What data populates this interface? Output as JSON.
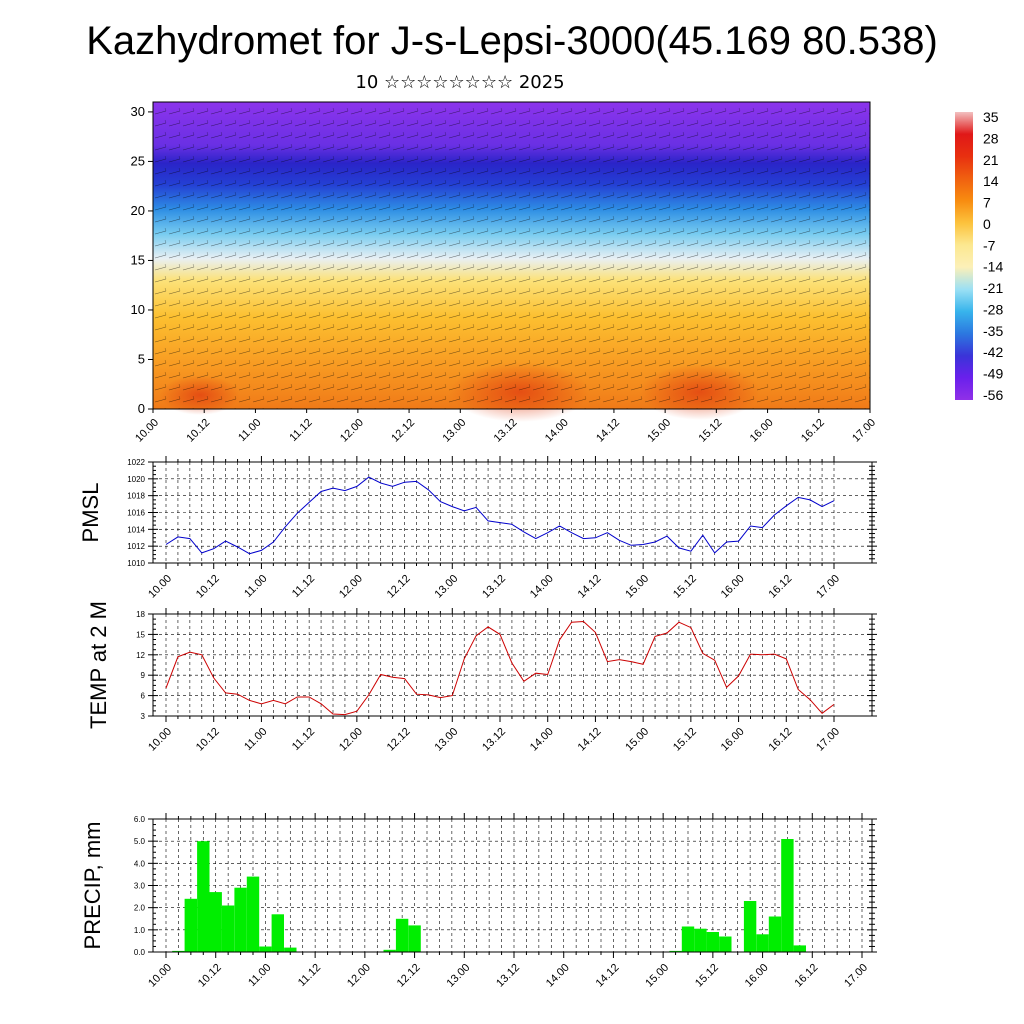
{
  "header": {
    "title": "Kazhydromet for J-s-Lepsi-3000(45.169 80.538)",
    "subtitle": "10 ☆☆☆☆☆☆☆☆ 2025"
  },
  "chart_data": [
    {
      "id": "cross_section",
      "type": "heatmap",
      "title": "",
      "xlabel": "",
      "ylabel": "",
      "x_ticks": [
        "10.00",
        "10.12",
        "11.00",
        "11.12",
        "12.00",
        "12.12",
        "13.00",
        "13.12",
        "14.00",
        "14.12",
        "15.00",
        "15.12",
        "16.00",
        "16.12",
        "17.00"
      ],
      "y_ticks": [
        0,
        5,
        10,
        15,
        20,
        25,
        30
      ],
      "ylim": [
        0,
        31
      ],
      "colorbar_labels": [
        "35",
        "28",
        "21",
        "14",
        "7",
        "0",
        "-7",
        "-14",
        "-21",
        "-28",
        "-35",
        "-42",
        "-49",
        "-56"
      ],
      "colorbar_colors": [
        "#f2c0c0",
        "#e01818",
        "#e83010",
        "#f06010",
        "#f88c10",
        "#fcc23c",
        "#fce890",
        "#fcf0b8",
        "#9ce0f4",
        "#38b4ec",
        "#2c78e0",
        "#3a34d8",
        "#6a20ec",
        "#9030e8"
      ],
      "notes": "Temperature (°C) vs height level with wind barbs overlay"
    },
    {
      "id": "pmsl",
      "type": "line",
      "ylabel": "PMSL",
      "ylim": [
        1010,
        1022
      ],
      "y_ticks": [
        1010,
        1012,
        1014,
        1016,
        1018,
        1020,
        1022
      ],
      "x_ticks": [
        "10.00",
        "10.12",
        "11.00",
        "11.12",
        "12.00",
        "12.12",
        "13.00",
        "13.12",
        "14.00",
        "14.12",
        "15.00",
        "15.12",
        "16.00",
        "16.12",
        "17.00"
      ],
      "color": "#0000cc",
      "values": [
        1012.2,
        1013.1,
        1012.9,
        1011.2,
        1011.7,
        1012.6,
        1011.9,
        1011.1,
        1011.5,
        1012.5,
        1014.3,
        1015.9,
        1017.2,
        1018.5,
        1018.9,
        1018.6,
        1019.1,
        1020.2,
        1019.5,
        1019.1,
        1019.6,
        1019.7,
        1018.7,
        1017.3,
        1016.7,
        1016.2,
        1016.6,
        1015.0,
        1014.8,
        1014.6,
        1013.7,
        1012.9,
        1013.6,
        1014.4,
        1013.6,
        1012.9,
        1013.0,
        1013.6,
        1012.7,
        1012.1,
        1012.2,
        1012.5,
        1013.2,
        1011.8,
        1011.4,
        1013.3,
        1011.2,
        1012.5,
        1012.6,
        1014.4,
        1014.2,
        1015.7,
        1016.8,
        1017.8,
        1017.5,
        1016.7,
        1017.4
      ]
    },
    {
      "id": "temp2m",
      "type": "line",
      "ylabel": "TEMP at 2 M",
      "ylim": [
        3,
        18
      ],
      "y_ticks": [
        3,
        6,
        9,
        12,
        15,
        18
      ],
      "x_ticks": [
        "10.00",
        "10.12",
        "11.00",
        "11.12",
        "12.00",
        "12.12",
        "13.00",
        "13.12",
        "14.00",
        "14.12",
        "15.00",
        "15.12",
        "16.00",
        "16.12",
        "17.00"
      ],
      "color": "#cc0000",
      "values": [
        7.1,
        11.7,
        12.4,
        12.0,
        8.6,
        6.4,
        6.2,
        5.3,
        4.8,
        5.3,
        4.8,
        5.8,
        5.8,
        4.8,
        3.3,
        3.2,
        3.7,
        6.1,
        9.1,
        8.7,
        8.5,
        6.2,
        6.1,
        5.7,
        6.0,
        11.4,
        14.8,
        16.1,
        15.0,
        10.8,
        8.1,
        9.3,
        9.1,
        14.2,
        16.8,
        16.9,
        15.3,
        11.0,
        11.3,
        11.0,
        10.6,
        14.7,
        15.2,
        16.8,
        16.0,
        12.2,
        11.2,
        7.2,
        8.9,
        12.1,
        12.0,
        12.1,
        11.4,
        6.9,
        5.4,
        3.4,
        4.7
      ]
    },
    {
      "id": "precip",
      "type": "bar",
      "ylabel": "PRECIP, mm",
      "ylim": [
        0,
        6
      ],
      "y_ticks": [
        "0.0",
        "1.0",
        "2.0",
        "3.0",
        "4.0",
        "5.0",
        "6.0"
      ],
      "x_ticks": [
        "10.00",
        "10.12",
        "11.00",
        "11.12",
        "12.00",
        "12.12",
        "13.00",
        "13.12",
        "14.00",
        "14.12",
        "15.00",
        "15.12",
        "16.00",
        "16.12",
        "17.00"
      ],
      "color": "#00ee00",
      "values": [
        0,
        0.05,
        2.4,
        5.0,
        2.7,
        2.1,
        2.9,
        3.4,
        0.25,
        1.7,
        0.2,
        0,
        0,
        0,
        0,
        0,
        0,
        0,
        0.1,
        1.5,
        1.2,
        0,
        0,
        0,
        0,
        0,
        0,
        0,
        0,
        0,
        0,
        0,
        0,
        0,
        0,
        0,
        0,
        0,
        0,
        0,
        0,
        0.05,
        1.15,
        1.05,
        0.9,
        0.7,
        0,
        2.3,
        0.8,
        1.6,
        5.1,
        0.3,
        0,
        0,
        0,
        0,
        0
      ]
    }
  ]
}
